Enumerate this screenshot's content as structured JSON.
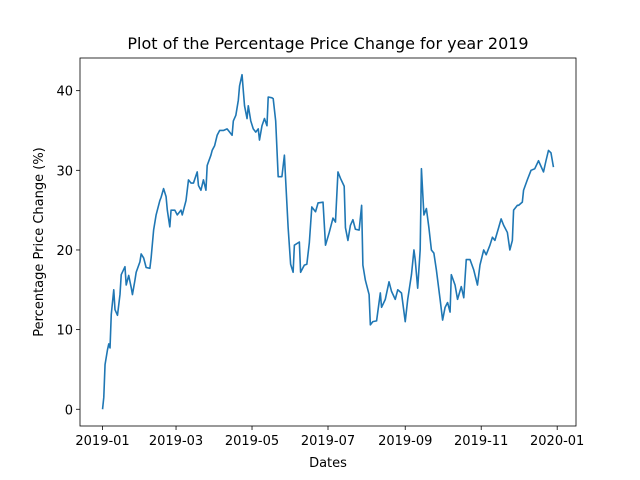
{
  "chart_data": {
    "type": "line",
    "title": "Plot of the Percentage Price Change for year 2019",
    "xlabel": "Dates",
    "ylabel": "Percentage Price Change (%)",
    "color": "#1f77b4",
    "x": [
      0,
      1,
      2,
      4,
      5,
      6,
      7,
      9,
      10,
      12,
      14,
      15,
      18,
      19,
      21,
      23,
      24,
      26,
      27,
      30,
      31,
      33,
      35,
      38,
      39,
      41,
      43,
      46,
      47,
      49,
      51,
      52,
      54,
      55,
      58,
      60,
      63,
      64,
      67,
      69,
      71,
      73,
      76,
      77,
      79,
      81,
      83,
      84,
      87,
      88,
      90,
      92,
      94,
      97,
      100,
      104,
      105,
      107,
      109,
      110,
      112,
      113,
      114,
      116,
      117,
      119,
      121,
      123,
      125,
      126,
      128,
      130,
      132,
      133,
      136,
      137,
      139,
      141,
      144,
      146,
      147,
      149,
      151,
      153,
      154,
      158,
      159,
      162,
      164,
      166,
      168,
      171,
      173,
      177,
      179,
      182,
      185,
      187,
      189,
      191,
      194,
      195,
      197,
      199,
      201,
      203,
      206,
      208,
      209,
      211,
      214,
      215,
      217,
      220,
      223,
      224,
      227,
      230,
      232,
      235,
      237,
      240,
      243,
      245,
      248,
      250,
      251,
      253,
      255,
      256,
      258,
      260,
      262,
      264,
      266,
      268,
      271,
      273,
      275,
      277,
      279,
      280,
      283,
      285,
      288,
      290,
      292,
      295,
      298,
      301,
      303,
      306,
      308,
      311,
      313,
      315,
      318,
      320,
      322,
      325,
      327,
      329,
      330,
      333,
      334,
      337,
      338,
      341,
      344,
      347,
      350,
      354,
      356,
      358,
      360,
      362
    ],
    "values": [
      0,
      1.5,
      5.6,
      7.5,
      8.2,
      7.7,
      11.9,
      15,
      12.5,
      11.8,
      14.4,
      16.9,
      17.9,
      15.6,
      16.8,
      15.3,
      14.4,
      16.2,
      17.2,
      18.5,
      19.5,
      19,
      17.8,
      17.7,
      19,
      22.5,
      24.4,
      26.2,
      26.6,
      27.7,
      26.7,
      25,
      22.9,
      25,
      25,
      24.4,
      25,
      24.4,
      26.2,
      28.8,
      28.4,
      28.4,
      29.8,
      28.1,
      27.5,
      28.8,
      27.5,
      30.6,
      31.9,
      32.5,
      33.1,
      34.4,
      35,
      35,
      35.2,
      34.4,
      36.2,
      36.9,
      38.8,
      40.6,
      42,
      40,
      38.1,
      36.5,
      38.1,
      36.2,
      35.2,
      34.8,
      35.2,
      33.8,
      35.6,
      36.5,
      35.6,
      39.2,
      39.1,
      39,
      36.2,
      29.2,
      29.2,
      31.9,
      28.8,
      22.8,
      18.2,
      17.2,
      20.6,
      21,
      17.2,
      18.1,
      18.2,
      20.9,
      25.4,
      24.8,
      25.9,
      26,
      20.6,
      22.2,
      24,
      23.5,
      29.8,
      29,
      28,
      22.8,
      21.2,
      23.1,
      23.8,
      22.6,
      22.5,
      25.6,
      18.1,
      16.2,
      14.4,
      10.6,
      11,
      11.1,
      14.6,
      12.8,
      13.8,
      16,
      14.8,
      13.8,
      15,
      14.6,
      11,
      13.8,
      16.9,
      20,
      18.8,
      15.2,
      20,
      30.2,
      24.4,
      25.2,
      22.8,
      20,
      19.6,
      17.5,
      13.8,
      11.2,
      12.8,
      13.4,
      12.2,
      16.9,
      15.6,
      13.8,
      15.4,
      14,
      18.8,
      18.8,
      17.5,
      15.6,
      18.1,
      20,
      19.4,
      20.6,
      21.6,
      21.2,
      22.8,
      23.9,
      23.1,
      22.2,
      20,
      21.2,
      25,
      25.6,
      25.6,
      26,
      27.5,
      28.8,
      30,
      30.2,
      31.2,
      29.8,
      31.2,
      32.5,
      32.2,
      30.4
    ],
    "xlim": [
      -18.1,
      380.1
    ],
    "ylim": [
      -2.1,
      44.1
    ],
    "xticks": [
      {
        "value": 0,
        "label": "2019-01"
      },
      {
        "value": 59,
        "label": "2019-03"
      },
      {
        "value": 120,
        "label": "2019-05"
      },
      {
        "value": 181,
        "label": "2019-07"
      },
      {
        "value": 243,
        "label": "2019-09"
      },
      {
        "value": 304,
        "label": "2019-11"
      },
      {
        "value": 365,
        "label": "2020-01"
      }
    ],
    "yticks": [
      0,
      10,
      20,
      30,
      40
    ]
  }
}
